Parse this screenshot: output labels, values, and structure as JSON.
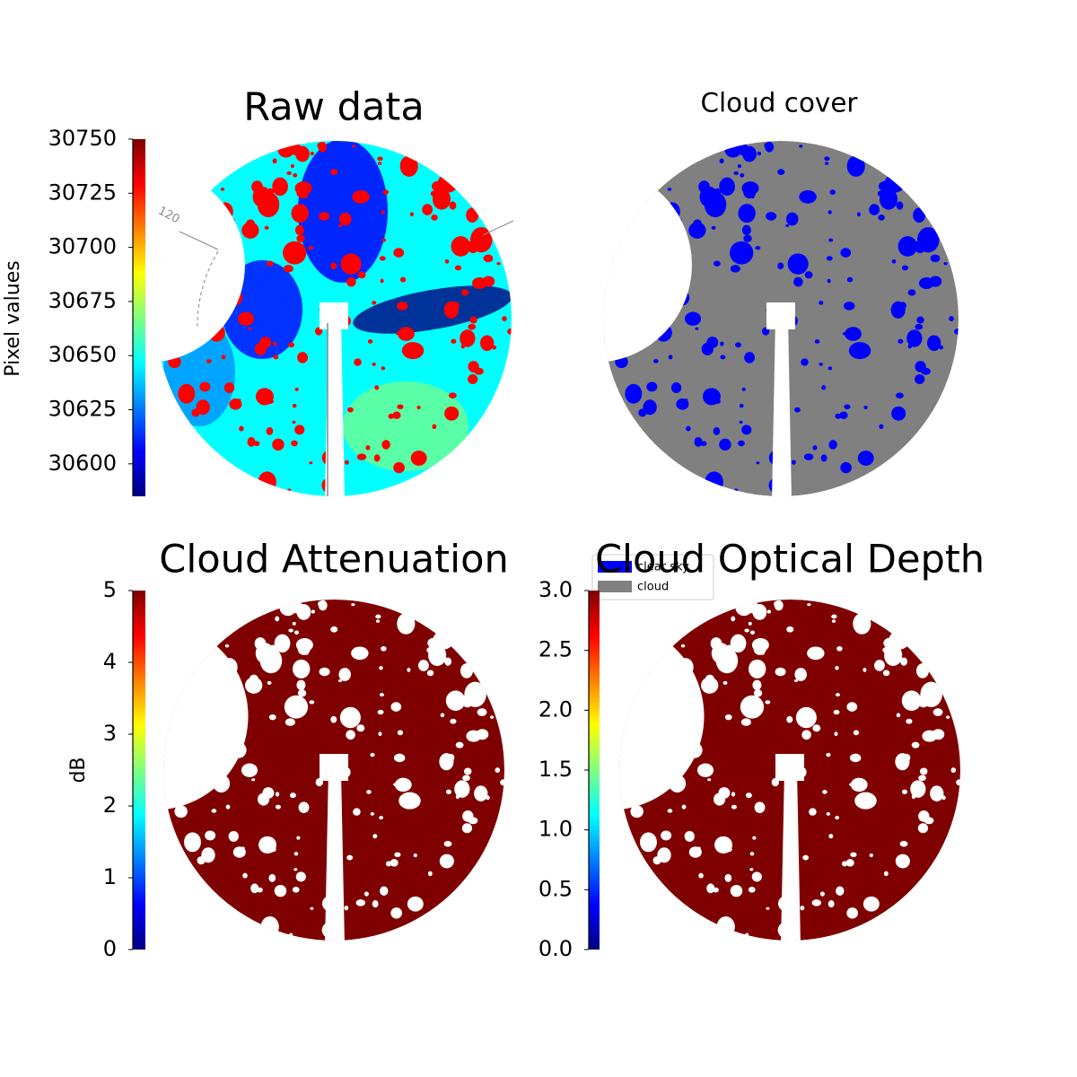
{
  "chart_data": [
    {
      "type": "image",
      "title": "Raw data",
      "ylabel": "Pixel values",
      "ylim": [
        30585,
        30750
      ],
      "yticks": [
        30600,
        30625,
        30650,
        30675,
        30700,
        30725,
        30750
      ],
      "colormap": [
        "#00007f",
        "#0000ff",
        "#007fff",
        "#00ffff",
        "#7fff7f",
        "#ffff00",
        "#ff7f00",
        "#ff0000",
        "#7f0000"
      ],
      "annotation": "120"
    },
    {
      "type": "mask",
      "title": "Cloud cover",
      "series": [
        {
          "name": "clear sky",
          "color": "#0000ff"
        },
        {
          "name": "cloud",
          "color": "#808080"
        }
      ],
      "legend": "upper left"
    },
    {
      "type": "image",
      "title": "Cloud Attenuation",
      "ylabel": "dB",
      "ylim": [
        0,
        5
      ],
      "yticks": [
        0,
        1,
        2,
        3,
        4,
        5
      ],
      "colormap": [
        "#00007f",
        "#0000ff",
        "#007fff",
        "#00ffff",
        "#7fff7f",
        "#ffff00",
        "#ff7f00",
        "#ff0000",
        "#7f0000"
      ]
    },
    {
      "type": "image",
      "title": "Cloud Optical Depth",
      "ylim": [
        0,
        3
      ],
      "yticks": [
        {
          "value": 0,
          "label": "0.0"
        },
        0.5,
        {
          "value": 1,
          "label": "1.0"
        },
        1.5,
        {
          "value": 2,
          "label": "2.0"
        },
        2.5,
        {
          "value": 3,
          "label": "3.0"
        }
      ],
      "colormap": [
        "#00007f",
        "#0000ff",
        "#007fff",
        "#00ffff",
        "#7fff7f",
        "#ffff00",
        "#ff7f00",
        "#ff0000",
        "#7f0000"
      ]
    }
  ]
}
